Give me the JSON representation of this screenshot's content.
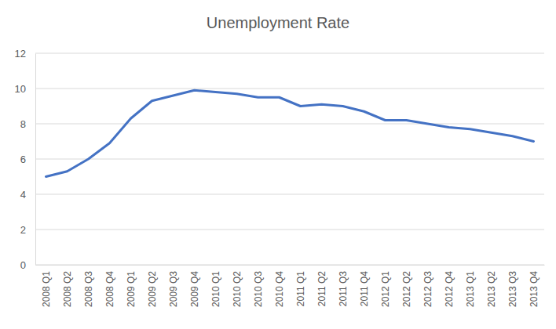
{
  "chart_data": {
    "type": "line",
    "title": "Unemployment Rate",
    "categories": [
      "2008 Q1",
      "2008 Q2",
      "2008 Q3",
      "2008 Q4",
      "2009 Q1",
      "2009 Q2",
      "2009 Q3",
      "2009 Q4",
      "2010 Q1",
      "2010 Q2",
      "2010 Q3",
      "2010 Q4",
      "2011 Q1",
      "2011 Q2",
      "2011 Q3",
      "2011 Q4",
      "2012 Q1",
      "2012 Q2",
      "2012 Q3",
      "2012 Q4",
      "2013 Q1",
      "2013 Q2",
      "2013 Q3",
      "2013 Q4"
    ],
    "values": [
      5.0,
      5.3,
      6.0,
      6.9,
      8.3,
      9.3,
      9.6,
      9.9,
      9.8,
      9.7,
      9.5,
      9.5,
      9.0,
      9.1,
      9.0,
      8.7,
      8.2,
      8.2,
      8.0,
      7.8,
      7.7,
      7.5,
      7.3,
      7.0
    ],
    "color": "#4472c4",
    "ylim": [
      0,
      12
    ],
    "yticks": [
      0,
      2,
      4,
      6,
      8,
      10,
      12
    ],
    "grid": true
  }
}
